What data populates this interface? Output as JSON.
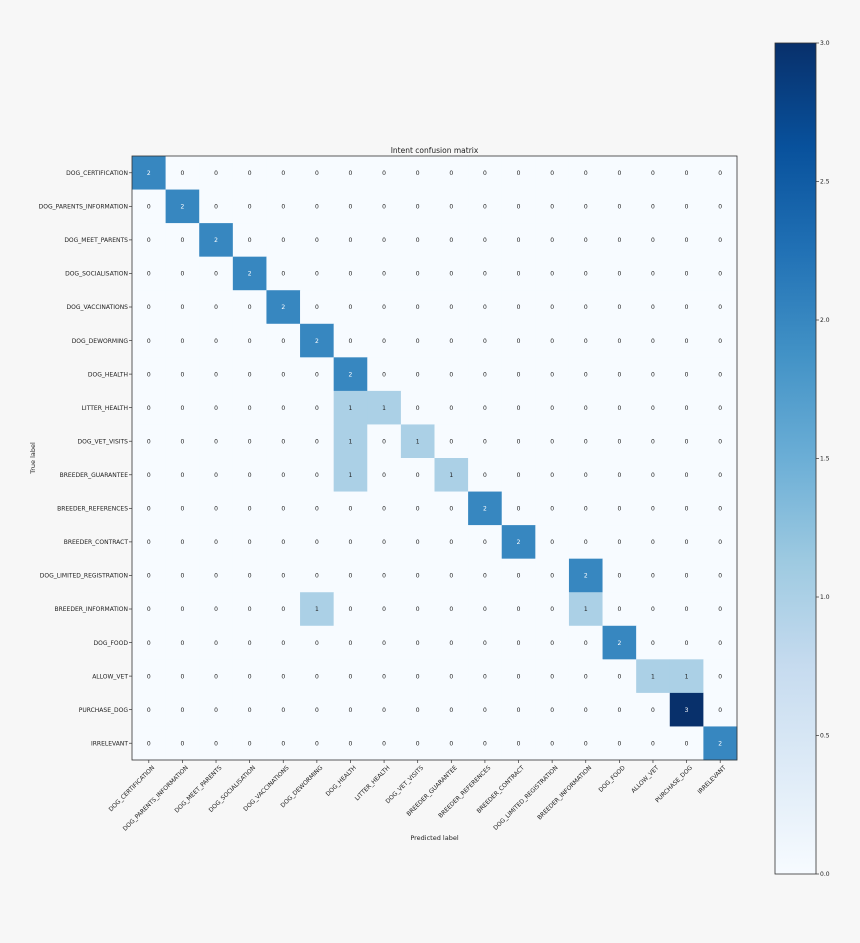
{
  "chart_data": {
    "type": "heatmap",
    "title": "Intent confusion matrix",
    "xlabel": "Predicted label",
    "ylabel": "True label",
    "labels": [
      "DOG_CERTIFICATION",
      "DOG_PARENTS_INFORMATION",
      "DOG_MEET_PARENTS",
      "DOG_SOCIALISATION",
      "DOG_VACCINATIONS",
      "DOG_DEWORMING",
      "DOG_HEALTH",
      "LITTER_HEALTH",
      "DOG_VET_VISITS",
      "BREEDER_GUARANTEE",
      "BREEDER_REFERENCES",
      "BREEDER_CONTRACT",
      "DOG_LIMITED_REGISTRATION",
      "BREEDER_INFORMATION",
      "DOG_FOOD",
      "ALLOW_VET",
      "PURCHASE_DOG",
      "IRRELEVANT"
    ],
    "matrix": [
      [
        2,
        0,
        0,
        0,
        0,
        0,
        0,
        0,
        0,
        0,
        0,
        0,
        0,
        0,
        0,
        0,
        0,
        0
      ],
      [
        0,
        2,
        0,
        0,
        0,
        0,
        0,
        0,
        0,
        0,
        0,
        0,
        0,
        0,
        0,
        0,
        0,
        0
      ],
      [
        0,
        0,
        2,
        0,
        0,
        0,
        0,
        0,
        0,
        0,
        0,
        0,
        0,
        0,
        0,
        0,
        0,
        0
      ],
      [
        0,
        0,
        0,
        2,
        0,
        0,
        0,
        0,
        0,
        0,
        0,
        0,
        0,
        0,
        0,
        0,
        0,
        0
      ],
      [
        0,
        0,
        0,
        0,
        2,
        0,
        0,
        0,
        0,
        0,
        0,
        0,
        0,
        0,
        0,
        0,
        0,
        0
      ],
      [
        0,
        0,
        0,
        0,
        0,
        2,
        0,
        0,
        0,
        0,
        0,
        0,
        0,
        0,
        0,
        0,
        0,
        0
      ],
      [
        0,
        0,
        0,
        0,
        0,
        0,
        2,
        0,
        0,
        0,
        0,
        0,
        0,
        0,
        0,
        0,
        0,
        0
      ],
      [
        0,
        0,
        0,
        0,
        0,
        0,
        1,
        1,
        0,
        0,
        0,
        0,
        0,
        0,
        0,
        0,
        0,
        0
      ],
      [
        0,
        0,
        0,
        0,
        0,
        0,
        1,
        0,
        1,
        0,
        0,
        0,
        0,
        0,
        0,
        0,
        0,
        0
      ],
      [
        0,
        0,
        0,
        0,
        0,
        0,
        1,
        0,
        0,
        1,
        0,
        0,
        0,
        0,
        0,
        0,
        0,
        0
      ],
      [
        0,
        0,
        0,
        0,
        0,
        0,
        0,
        0,
        0,
        0,
        2,
        0,
        0,
        0,
        0,
        0,
        0,
        0
      ],
      [
        0,
        0,
        0,
        0,
        0,
        0,
        0,
        0,
        0,
        0,
        0,
        2,
        0,
        0,
        0,
        0,
        0,
        0
      ],
      [
        0,
        0,
        0,
        0,
        0,
        0,
        0,
        0,
        0,
        0,
        0,
        0,
        0,
        2,
        0,
        0,
        0,
        0
      ],
      [
        0,
        0,
        0,
        0,
        0,
        1,
        0,
        0,
        0,
        0,
        0,
        0,
        0,
        1,
        0,
        0,
        0,
        0
      ],
      [
        0,
        0,
        0,
        0,
        0,
        0,
        0,
        0,
        0,
        0,
        0,
        0,
        0,
        0,
        2,
        0,
        0,
        0
      ],
      [
        0,
        0,
        0,
        0,
        0,
        0,
        0,
        0,
        0,
        0,
        0,
        0,
        0,
        0,
        0,
        1,
        1,
        0
      ],
      [
        0,
        0,
        0,
        0,
        0,
        0,
        0,
        0,
        0,
        0,
        0,
        0,
        0,
        0,
        0,
        0,
        3,
        0
      ],
      [
        0,
        0,
        0,
        0,
        0,
        0,
        0,
        0,
        0,
        0,
        0,
        0,
        0,
        0,
        0,
        0,
        0,
        2
      ]
    ],
    "colorbar": {
      "range": [
        0,
        3
      ],
      "ticks": [
        "0.0",
        "0.5",
        "1.0",
        "1.5",
        "2.0",
        "2.5",
        "3.0"
      ]
    },
    "colormap": "Blues"
  }
}
